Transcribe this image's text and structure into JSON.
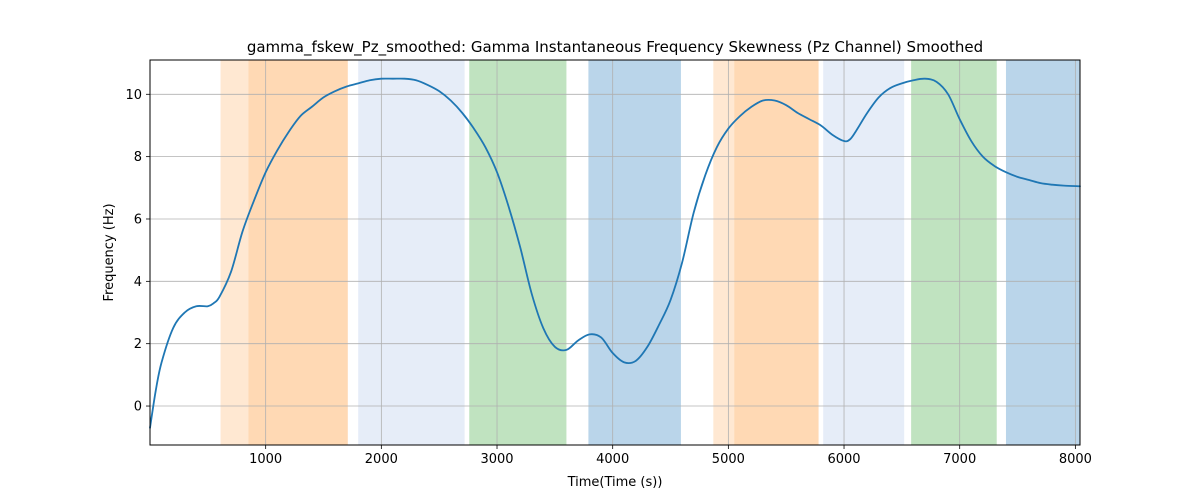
{
  "chart_data": {
    "type": "line",
    "title": "gamma_fskew_Pz_smoothed: Gamma Instantaneous Frequency Skewness (Pz Channel) Smoothed",
    "xlabel": "Time(Time (s))",
    "ylabel": "Frequency (Hz)",
    "xlim": [
      0,
      8040
    ],
    "ylim": [
      -1.25,
      11.1
    ],
    "x_ticks": [
      1000,
      2000,
      3000,
      4000,
      5000,
      6000,
      7000,
      8000
    ],
    "y_ticks": [
      0,
      2,
      4,
      6,
      8,
      10
    ],
    "grid": true,
    "line_color": "#1f77b4",
    "bands": [
      {
        "start": 610,
        "end": 850,
        "color": "#ffe8d2"
      },
      {
        "start": 850,
        "end": 1710,
        "color": "#ffd9b4"
      },
      {
        "start": 1800,
        "end": 2720,
        "color": "#e6edf8"
      },
      {
        "start": 2760,
        "end": 3600,
        "color": "#c0e3c0"
      },
      {
        "start": 3790,
        "end": 4590,
        "color": "#bad5ea"
      },
      {
        "start": 4870,
        "end": 5050,
        "color": "#ffe8d2"
      },
      {
        "start": 5050,
        "end": 5780,
        "color": "#ffd9b4"
      },
      {
        "start": 5820,
        "end": 6520,
        "color": "#e6edf8"
      },
      {
        "start": 6580,
        "end": 7320,
        "color": "#c0e3c0"
      },
      {
        "start": 7400,
        "end": 8040,
        "color": "#bad5ea"
      }
    ],
    "series": [
      {
        "x": [
          0,
          50,
          100,
          200,
          300,
          400,
          500,
          550,
          600,
          700,
          800,
          900,
          1000,
          1100,
          1200,
          1300,
          1400,
          1500,
          1600,
          1700,
          1800,
          1900,
          2000,
          2100,
          2200,
          2300,
          2400,
          2500,
          2600,
          2700,
          2800,
          2900,
          3000,
          3100,
          3200,
          3300,
          3400,
          3500,
          3600,
          3700,
          3800,
          3900,
          4000,
          4100,
          4200,
          4300,
          4400,
          4500,
          4600,
          4700,
          4800,
          4900,
          5000,
          5100,
          5200,
          5300,
          5400,
          5500,
          5600,
          5700,
          5800,
          5900,
          6000,
          6050,
          6100,
          6200,
          6300,
          6400,
          6500,
          6600,
          6700,
          6800,
          6900,
          7000,
          7100,
          7200,
          7300,
          7400,
          7500,
          7600,
          7700,
          7800,
          7900,
          8040
        ],
        "y": [
          -0.7,
          0.5,
          1.4,
          2.5,
          3.0,
          3.2,
          3.2,
          3.3,
          3.5,
          4.3,
          5.6,
          6.6,
          7.5,
          8.2,
          8.8,
          9.3,
          9.6,
          9.9,
          10.1,
          10.25,
          10.35,
          10.45,
          10.5,
          10.5,
          10.5,
          10.45,
          10.3,
          10.1,
          9.8,
          9.4,
          8.9,
          8.3,
          7.5,
          6.4,
          5.1,
          3.6,
          2.5,
          1.9,
          1.8,
          2.1,
          2.3,
          2.2,
          1.7,
          1.4,
          1.45,
          1.9,
          2.6,
          3.4,
          4.6,
          6.2,
          7.4,
          8.3,
          8.9,
          9.3,
          9.6,
          9.8,
          9.8,
          9.65,
          9.4,
          9.2,
          9.0,
          8.7,
          8.5,
          8.55,
          8.8,
          9.4,
          9.9,
          10.2,
          10.35,
          10.45,
          10.5,
          10.4,
          10.0,
          9.2,
          8.5,
          8.0,
          7.7,
          7.5,
          7.35,
          7.25,
          7.15,
          7.1,
          7.07,
          7.05
        ]
      }
    ]
  }
}
